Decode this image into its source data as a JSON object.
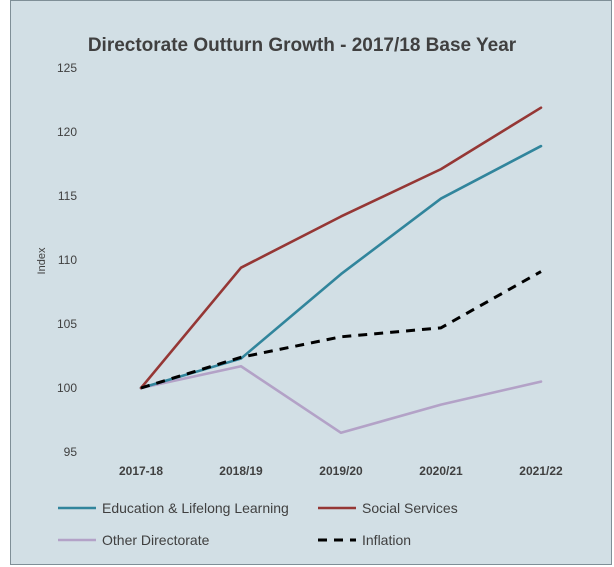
{
  "chart_data": {
    "type": "line",
    "title": "Directorate Outturn Growth - 2017/18 Base Year",
    "xlabel": "",
    "ylabel": "Index",
    "categories": [
      "2017-18",
      "2018/19",
      "2019/20",
      "2020/21",
      "2021/22"
    ],
    "ylim": [
      95,
      125
    ],
    "yticks": [
      95,
      100,
      105,
      110,
      115,
      120,
      125
    ],
    "grid": false,
    "legend_position": "bottom",
    "series": [
      {
        "name": "Education & Lifelong Learning",
        "values": [
          100,
          102.3,
          108.9,
          114.8,
          118.9
        ],
        "color": "#31859c",
        "dash": "solid"
      },
      {
        "name": "Social Services",
        "values": [
          100,
          109.4,
          113.4,
          117.1,
          121.9
        ],
        "color": "#953735",
        "dash": "solid"
      },
      {
        "name": "Other Directorate",
        "values": [
          100,
          101.7,
          96.5,
          98.7,
          100.5
        ],
        "color": "#b3a2c7",
        "dash": "solid"
      },
      {
        "name": "Inflation",
        "values": [
          100,
          102.4,
          104.0,
          104.7,
          109.1
        ],
        "color": "#000000",
        "dash": "dashed"
      }
    ]
  }
}
